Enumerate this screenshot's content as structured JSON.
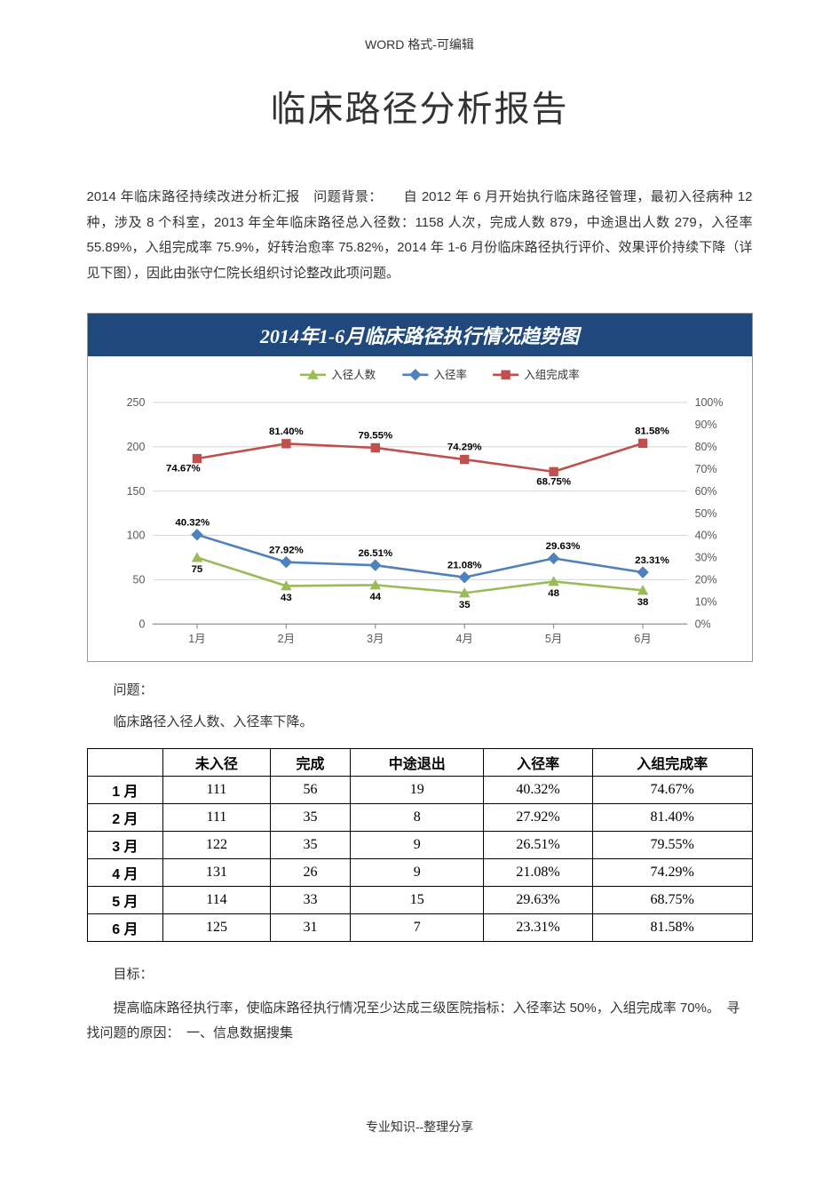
{
  "header_note": "WORD 格式-可编辑",
  "title": "临床路径分析报告",
  "body_text": "2014 年临床路径持续改进分析汇报　问题背景：　　自 2012 年 6 月开始执行临床路径管理，最初入径病种 12 种，涉及 8 个科室，2013 年全年临床路径总入径数：1158 人次，完成人数 879，中途退出人数 279，入径率 55.89%，入组完成率 75.9%，好转治愈率 75.82%，2014 年 1-6 月份临床路径执行评价、效果评价持续下降（详见下图），因此由张守仁院长组织讨论整改此项问题。",
  "problem_label": "问题：",
  "problem_text": "临床路径入径人数、入径率下降。",
  "goal_label": "目标：",
  "goal_text": "提高临床路径执行率，使临床路径执行情况至少达成三级医院指标：入径率达 50%，入组完成率 70%。　寻找问题的原因：　一、信息数据搜集",
  "footer_note": "专业知识--整理分享",
  "chart": {
    "title": "2014年1-6月临床路径执行情况趋势图",
    "months": [
      "1月",
      "2月",
      "3月",
      "4月",
      "5月",
      "6月"
    ],
    "series": {
      "count": {
        "label": "入径人数",
        "color": "#9bbb59",
        "marker": "triangle",
        "values": [
          75,
          43,
          44,
          35,
          48,
          38
        ]
      },
      "rate": {
        "label": "入径率",
        "color": "#4f81bd",
        "marker": "diamond",
        "values_pct": [
          40.32,
          27.92,
          26.51,
          21.08,
          29.63,
          23.31
        ]
      },
      "complete": {
        "label": "入组完成率",
        "color": "#c0504d",
        "marker": "square",
        "values_pct": [
          74.67,
          81.4,
          79.55,
          74.29,
          68.75,
          81.58
        ]
      }
    },
    "left_axis": {
      "min": 0,
      "max": 250,
      "step": 50
    },
    "right_axis": {
      "min": 0,
      "max": 100,
      "step": 10,
      "suffix": "%"
    },
    "grid_color": "#d9d9d9",
    "background": "#ffffff",
    "line_width": 2.5,
    "marker_size": 5,
    "plot_border_color": "#808080"
  },
  "table": {
    "columns": [
      "",
      "未入径",
      "完成",
      "中途退出",
      "入径率",
      "入组完成率"
    ],
    "rows": [
      [
        "1 月",
        "111",
        "56",
        "19",
        "40.32%",
        "74.67%"
      ],
      [
        "2 月",
        "111",
        "35",
        "8",
        "27.92%",
        "81.40%"
      ],
      [
        "3 月",
        "122",
        "35",
        "9",
        "26.51%",
        "79.55%"
      ],
      [
        "4 月",
        "131",
        "26",
        "9",
        "21.08%",
        "74.29%"
      ],
      [
        "5 月",
        "114",
        "33",
        "15",
        "29.63%",
        "68.75%"
      ],
      [
        "6 月",
        "125",
        "31",
        "7",
        "23.31%",
        "81.58%"
      ]
    ]
  }
}
